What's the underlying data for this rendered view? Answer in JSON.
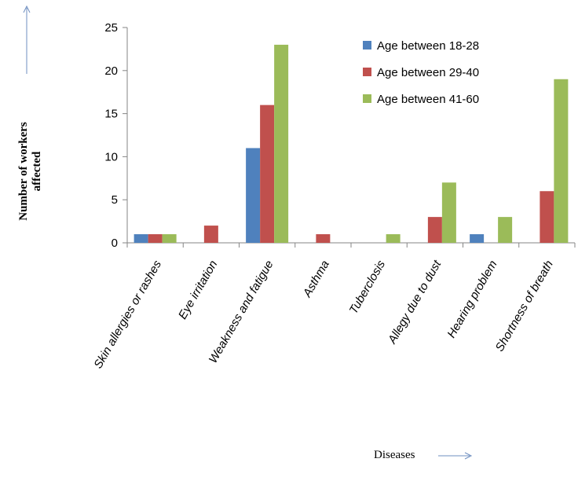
{
  "chart_data": {
    "type": "bar",
    "title": "",
    "ylabel_line1": "Number of workers",
    "ylabel_line2": "affected",
    "xlabel": "Diseases",
    "ylim": [
      0,
      25
    ],
    "yticks": [
      0,
      5,
      10,
      15,
      20,
      25
    ],
    "grid": false,
    "legend_position": "top-right",
    "categories": [
      "Skin allergies or rashes",
      "Eye irritation",
      "Weakness and fatigue",
      "Asthma",
      "Tuberclosis",
      "Allegy due to dust",
      "Hearing problem",
      "Shortness of breath"
    ],
    "series": [
      {
        "name": "Age between 18-28",
        "color": "#4f81bd",
        "values": [
          1,
          0,
          11,
          0,
          0,
          0,
          1,
          0
        ]
      },
      {
        "name": "Age between 29-40",
        "color": "#c0504d",
        "values": [
          1,
          2,
          16,
          1,
          0,
          3,
          0,
          6
        ]
      },
      {
        "name": "Age between 41-60",
        "color": "#9bbb59",
        "values": [
          1,
          0,
          23,
          0,
          1,
          7,
          3,
          19
        ]
      }
    ]
  }
}
